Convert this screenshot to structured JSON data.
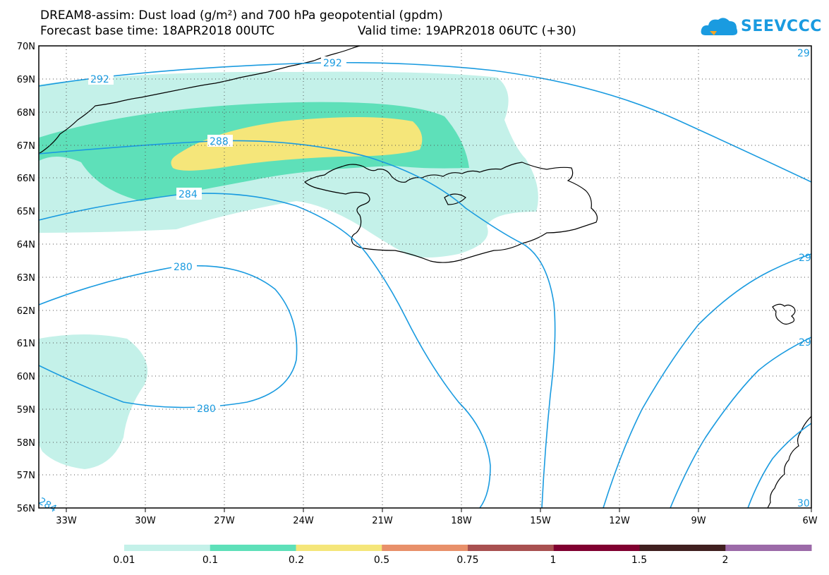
{
  "header": {
    "title_line1": "DREAM8-assim: Dust load (g/m²) and 700 hPa geopotential (gpdm)",
    "title_line2": "Forecast base time: 18APR2018 00UTC",
    "title_line2b": "Valid time: 19APR2018 06UTC (+30)",
    "logo_text": "SEEVCCC"
  },
  "map": {
    "lat_labels": [
      "70N",
      "69N",
      "68N",
      "67N",
      "66N",
      "65N",
      "64N",
      "63N",
      "62N",
      "61N",
      "60N",
      "59N",
      "58N",
      "57N",
      "56N"
    ],
    "lon_labels": [
      "33W",
      "30W",
      "27W",
      "24W",
      "21W",
      "18W",
      "15W",
      "12W",
      "9W",
      "6W"
    ],
    "contour_labels": [
      "292",
      "292",
      "288",
      "284",
      "280",
      "280",
      "29",
      "29",
      "29",
      "284",
      "30"
    ],
    "colors": {
      "contour": "#1a9be0",
      "land_outline": "#000000"
    }
  },
  "colorbar": {
    "labels": [
      "0.01",
      "0.1",
      "0.2",
      "0.5",
      "0.75",
      "1",
      "1.5",
      "2"
    ],
    "colors": [
      "#c4f1e9",
      "#5ee0b9",
      "#f5e67a",
      "#e8906a",
      "#a85050",
      "#800030",
      "#402020",
      "#9c6aa8"
    ]
  }
}
